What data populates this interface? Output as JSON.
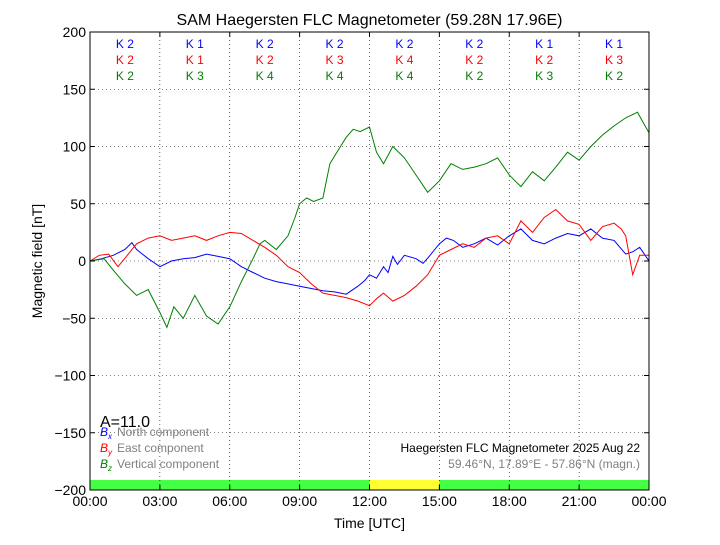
{
  "chart_data": {
    "type": "line",
    "title": "SAM Haegersten FLC Magnetometer (59.28N 17.96E)",
    "xlabel": "Time [UTC]",
    "ylabel": "Magnetic field [nT]",
    "xlim": [
      0,
      24
    ],
    "ylim": [
      -200,
      200
    ],
    "xticks": [
      0,
      3,
      6,
      9,
      12,
      15,
      18,
      21,
      24
    ],
    "xtick_labels": [
      "00:00",
      "03:00",
      "06:00",
      "09:00",
      "12:00",
      "15:00",
      "18:00",
      "21:00",
      "00:00"
    ],
    "yticks": [
      -200,
      -150,
      -100,
      -50,
      0,
      50,
      100,
      150,
      200
    ],
    "ytick_labels": [
      "−200",
      "−150",
      "−100",
      "−50",
      "0",
      "50",
      "100",
      "150",
      "200"
    ],
    "grid": true,
    "activity_index": "A=11.0",
    "legend": {
      "placement": "bottom-left",
      "entries": [
        {
          "symbol": "B",
          "sub": "x",
          "label": "North component",
          "color": "#0000ff"
        },
        {
          "symbol": "B",
          "sub": "y",
          "label": "East component",
          "color": "#ff0000"
        },
        {
          "symbol": "B",
          "sub": "z",
          "label": "Vertical component",
          "color": "#008000"
        }
      ]
    },
    "info": {
      "line1": "Haegersten FLC Magnetometer 2025 Aug 22",
      "line2": "59.46°N, 17.89°E - 57.86°N (magn.)"
    },
    "k_indices": {
      "blue": [
        "K 2",
        "K 1",
        "K 2",
        "K 2",
        "K 2",
        "K 2",
        "K 1",
        "K 1"
      ],
      "red": [
        "K 2",
        "K 1",
        "K 2",
        "K 3",
        "K 4",
        "K 2",
        "K 2",
        "K 3"
      ],
      "green": [
        "K 2",
        "K 3",
        "K 4",
        "K 4",
        "K 4",
        "K 2",
        "K 3",
        "K 2"
      ]
    },
    "status_bar": [
      {
        "start": 0,
        "end": 12,
        "color": "#44ff44"
      },
      {
        "start": 12,
        "end": 15,
        "color": "#ffff33"
      },
      {
        "start": 15,
        "end": 24,
        "color": "#44ff44"
      }
    ],
    "series": [
      {
        "name": "North component",
        "color": "#0000ff",
        "x": [
          0,
          0.5,
          1,
          1.5,
          1.8,
          2,
          2.5,
          3,
          3.5,
          4,
          4.5,
          5,
          5.5,
          6,
          6.5,
          7,
          7.5,
          8,
          8.5,
          9,
          9.5,
          10,
          10.5,
          11,
          11.5,
          11.8,
          12,
          12.3,
          12.6,
          12.8,
          13,
          13.2,
          13.5,
          14,
          14.3,
          14.6,
          14.8,
          15,
          15.3,
          15.6,
          16,
          16.5,
          17,
          17.5,
          18,
          18.5,
          19,
          19.5,
          20,
          20.5,
          21,
          21.5,
          22,
          22.5,
          23,
          23.3,
          23.6,
          24
        ],
        "y": [
          0,
          2,
          5,
          10,
          16,
          10,
          2,
          -5,
          0,
          2,
          3,
          6,
          4,
          2,
          -5,
          -10,
          -15,
          -18,
          -20,
          -22,
          -24,
          -26,
          -27,
          -29,
          -22,
          -17,
          -12,
          -15,
          -5,
          -10,
          4,
          -3,
          5,
          2,
          -2,
          5,
          10,
          15,
          20,
          18,
          12,
          15,
          20,
          14,
          22,
          28,
          18,
          15,
          20,
          24,
          22,
          28,
          20,
          18,
          6,
          8,
          12,
          0
        ]
      },
      {
        "name": "East component",
        "color": "#ff0000",
        "x": [
          0,
          0.4,
          0.8,
          1.2,
          1.6,
          2,
          2.5,
          3,
          3.5,
          4,
          4.5,
          5,
          5.5,
          6,
          6.5,
          7,
          7.5,
          8,
          8.5,
          9,
          9.5,
          10,
          10.5,
          11,
          11.5,
          12,
          12.3,
          12.6,
          13,
          13.5,
          14,
          14.5,
          15,
          15.5,
          16,
          16.5,
          17,
          17.5,
          18,
          18.5,
          19,
          19.5,
          20,
          20.5,
          21,
          21.5,
          22,
          22.5,
          22.8,
          23,
          23.3,
          23.6,
          24
        ],
        "y": [
          0,
          5,
          6,
          -5,
          5,
          15,
          20,
          22,
          18,
          20,
          22,
          18,
          22,
          25,
          24,
          18,
          12,
          5,
          -5,
          -10,
          -20,
          -28,
          -30,
          -32,
          -35,
          -39,
          -33,
          -28,
          -35,
          -30,
          -22,
          -12,
          5,
          10,
          15,
          12,
          20,
          22,
          15,
          35,
          25,
          38,
          45,
          35,
          32,
          18,
          30,
          33,
          28,
          22,
          -12,
          5,
          5
        ]
      },
      {
        "name": "Vertical component",
        "color": "#008000",
        "x": [
          0,
          0.3,
          0.6,
          1,
          1.5,
          2,
          2.5,
          3,
          3.3,
          3.6,
          4,
          4.5,
          5,
          5.5,
          6,
          6.5,
          7,
          7.3,
          7.5,
          8,
          8.5,
          8.8,
          9,
          9.3,
          9.6,
          10,
          10.3,
          10.6,
          11,
          11.3,
          11.6,
          12,
          12.3,
          12.6,
          13,
          13.5,
          14,
          14.5,
          15,
          15.5,
          16,
          16.5,
          17,
          17.5,
          18,
          18.5,
          19,
          19.5,
          20,
          20.5,
          21,
          21.5,
          22,
          22.5,
          23,
          23.5,
          24
        ],
        "y": [
          0,
          1,
          2,
          -8,
          -20,
          -30,
          -25,
          -45,
          -58,
          -40,
          -50,
          -30,
          -48,
          -55,
          -40,
          -18,
          2,
          15,
          18,
          10,
          22,
          38,
          50,
          55,
          52,
          55,
          85,
          95,
          108,
          115,
          113,
          117,
          95,
          85,
          100,
          90,
          75,
          60,
          70,
          85,
          80,
          82,
          85,
          90,
          75,
          65,
          78,
          70,
          82,
          95,
          88,
          100,
          110,
          118,
          125,
          130,
          112
        ]
      }
    ]
  }
}
